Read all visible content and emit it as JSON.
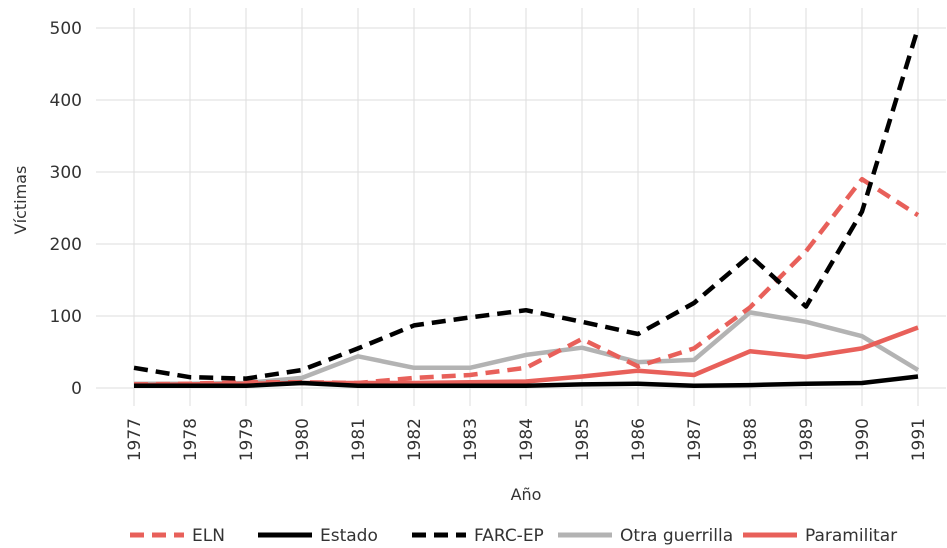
{
  "chart_data": {
    "type": "line",
    "title": "",
    "xlabel": "Año",
    "ylabel": "Víctimas",
    "x": [
      "1977",
      "1978",
      "1979",
      "1980",
      "1981",
      "1982",
      "1983",
      "1984",
      "1985",
      "1986",
      "1987",
      "1988",
      "1989",
      "1990",
      "1991"
    ],
    "ylim": [
      -25,
      520
    ],
    "yticks": [
      0,
      100,
      200,
      300,
      400,
      500
    ],
    "grid": true,
    "legend_position": "bottom",
    "series": [
      {
        "name": "ELN",
        "color": "#e8605a",
        "dash": "dashed",
        "values": [
          5,
          6,
          8,
          8,
          7,
          14,
          18,
          28,
          68,
          30,
          55,
          112,
          190,
          290,
          240
        ]
      },
      {
        "name": "Estado",
        "color": "#000000",
        "dash": "solid",
        "values": [
          3,
          3,
          3,
          7,
          3,
          3,
          3,
          3,
          5,
          6,
          3,
          4,
          6,
          7,
          16
        ]
      },
      {
        "name": "FARC-EP",
        "color": "#000000",
        "dash": "dashed",
        "values": [
          28,
          15,
          13,
          25,
          55,
          87,
          98,
          108,
          92,
          75,
          118,
          184,
          113,
          245,
          500
        ]
      },
      {
        "name": "Otra guerrilla",
        "color": "#b3b3b3",
        "dash": "solid",
        "values": [
          6,
          6,
          7,
          14,
          44,
          28,
          28,
          46,
          56,
          36,
          39,
          105,
          92,
          72,
          25
        ]
      },
      {
        "name": "Paramilitar",
        "color": "#e8605a",
        "dash": "solid",
        "values": [
          4,
          5,
          6,
          7,
          7,
          7,
          8,
          9,
          16,
          24,
          18,
          51,
          43,
          55,
          84
        ]
      }
    ]
  }
}
